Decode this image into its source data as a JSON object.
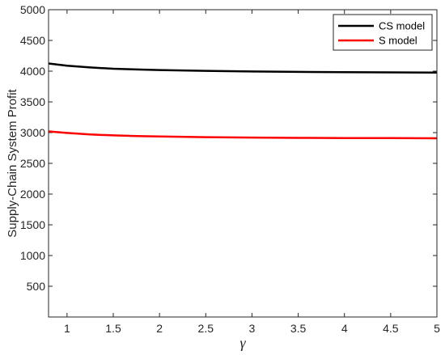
{
  "chart_data": {
    "type": "line",
    "title": "",
    "xlabel": "γ",
    "ylabel": "Supply-Chain System Profit",
    "xlim": [
      0.8,
      5
    ],
    "ylim": [
      0,
      5000
    ],
    "x_ticks": [
      "1",
      "1.5",
      "2",
      "2.5",
      "3",
      "3.5",
      "4",
      "4.5",
      "5"
    ],
    "y_ticks": [
      "500",
      "1000",
      "1500",
      "2000",
      "2500",
      "3000",
      "3500",
      "4000",
      "4500",
      "5000"
    ],
    "grid": false,
    "legend_position": "top-right",
    "series": [
      {
        "name": "CS model",
        "color": "#000000",
        "x": [
          0.8,
          1.0,
          1.25,
          1.5,
          1.75,
          2.0,
          2.5,
          3.0,
          3.5,
          4.0,
          4.5,
          5.0
        ],
        "values": [
          4125,
          4090,
          4060,
          4040,
          4028,
          4018,
          4005,
          3995,
          3988,
          3983,
          3980,
          3978
        ]
      },
      {
        "name": "S model",
        "color": "#ff0000",
        "x": [
          0.8,
          1.0,
          1.25,
          1.5,
          1.75,
          2.0,
          2.5,
          3.0,
          3.5,
          4.0,
          4.5,
          5.0
        ],
        "values": [
          3020,
          2995,
          2970,
          2955,
          2945,
          2937,
          2926,
          2920,
          2915,
          2912,
          2910,
          2908
        ]
      }
    ]
  }
}
